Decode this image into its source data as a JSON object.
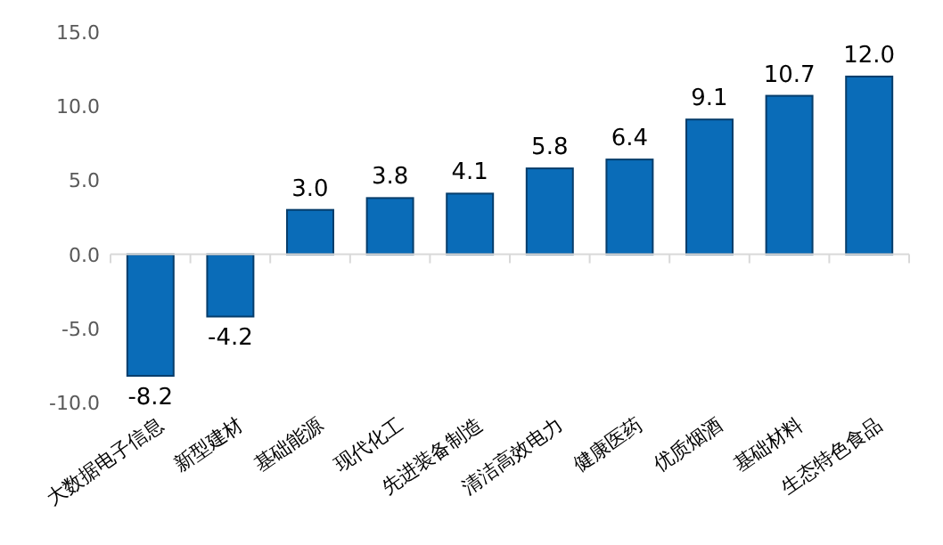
{
  "chart_data": {
    "type": "bar",
    "categories": [
      "大数据电子信息",
      "新型建材",
      "基础能源",
      "现代化工",
      "先进装备制造",
      "清洁高效电力",
      "健康医药",
      "优质烟酒",
      "基础材料",
      "生态特色食品"
    ],
    "values": [
      -8.2,
      -4.2,
      3.0,
      3.8,
      4.1,
      5.8,
      6.4,
      9.1,
      10.7,
      12.0
    ],
    "value_labels": [
      "-8.2",
      "-4.2",
      "3.0",
      "3.8",
      "4.1",
      "5.8",
      "6.4",
      "9.1",
      "10.7",
      "12.0"
    ],
    "color": "#0a6cb8",
    "ylim": [
      -10,
      15
    ],
    "yticks": [
      {
        "value": -10,
        "label": "-10.0"
      },
      {
        "value": -5,
        "label": "-5.0"
      },
      {
        "value": 0,
        "label": "0.0"
      },
      {
        "value": 5,
        "label": "5.0"
      },
      {
        "value": 10,
        "label": "10.0"
      },
      {
        "value": 15,
        "label": "15.0"
      }
    ]
  }
}
